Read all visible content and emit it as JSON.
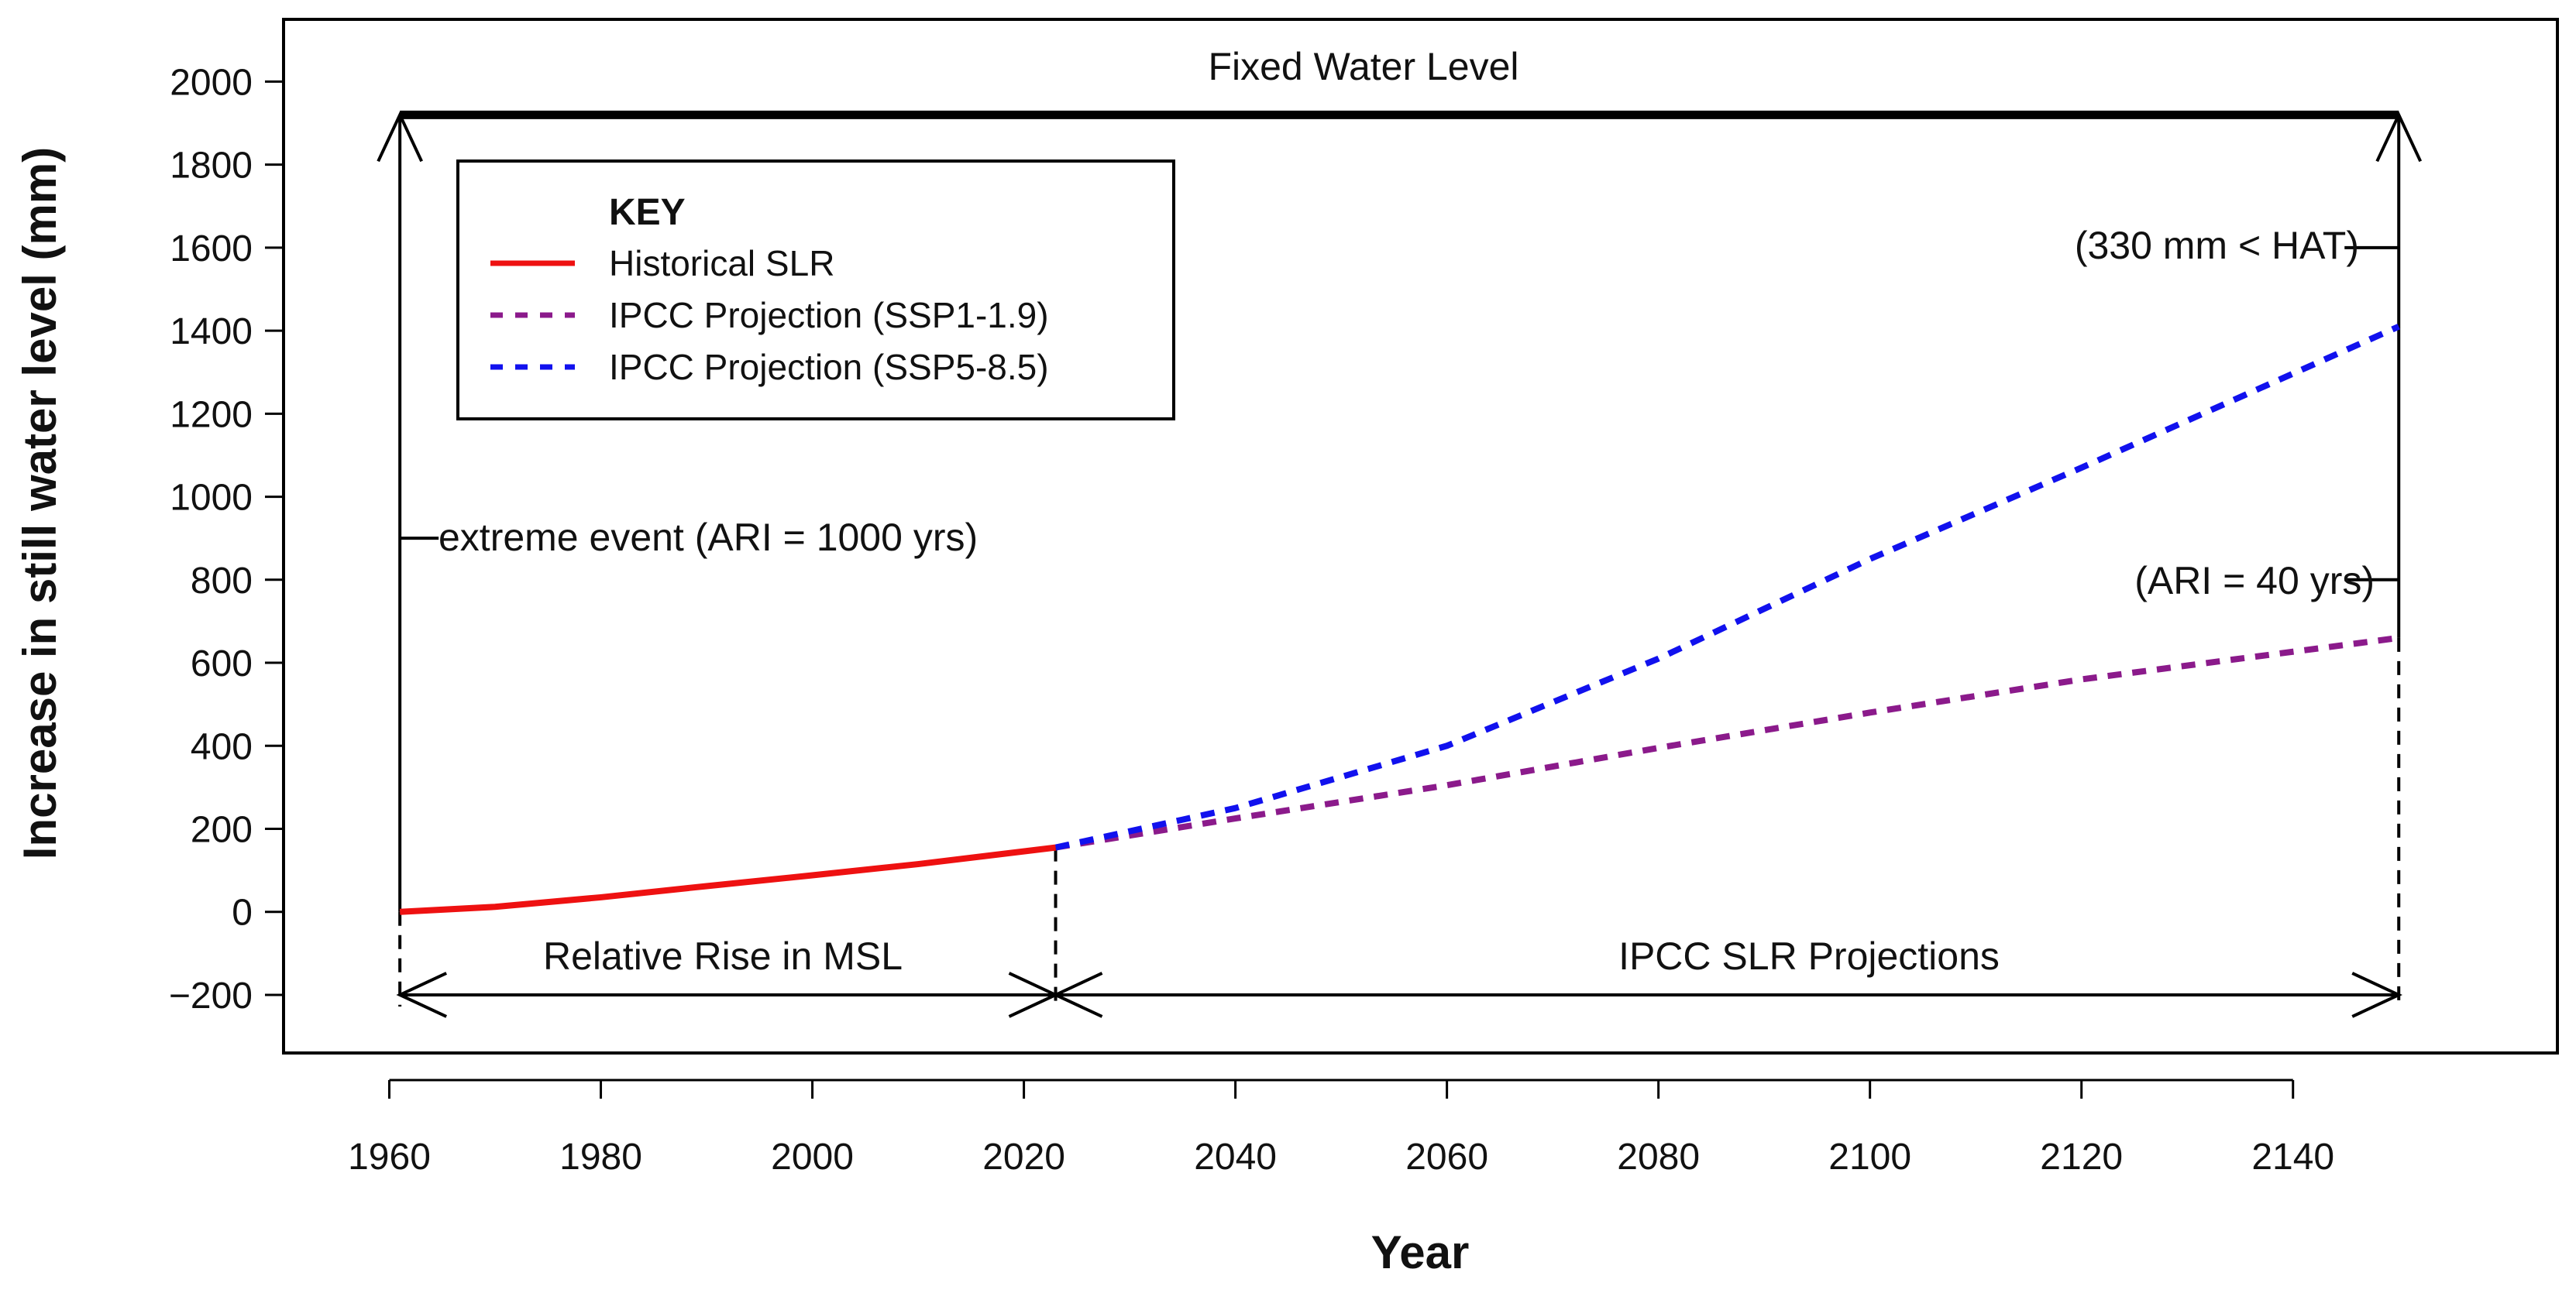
{
  "chart_data": {
    "type": "line",
    "xlabel": "Year",
    "ylabel": "Increase in still water level (mm)",
    "xlim": [
      1950,
      2165
    ],
    "ylim": [
      -340,
      2150
    ],
    "x_ticks": [
      1960,
      1980,
      2000,
      2020,
      2040,
      2060,
      2080,
      2100,
      2120,
      2140
    ],
    "y_ticks": [
      -200,
      0,
      200,
      400,
      600,
      800,
      1000,
      1200,
      1400,
      1600,
      1800,
      2000
    ],
    "y_tick_labels": [
      "−200",
      "0",
      "200",
      "400",
      "600",
      "800",
      "1000",
      "1200",
      "1400",
      "1600",
      "1800",
      "2000"
    ],
    "legend": {
      "title": "KEY",
      "position": "top-left",
      "entries": [
        {
          "label": "Historical SLR",
          "color": "#ee1111",
          "style": "solid"
        },
        {
          "label": "IPCC Projection (SSP1-1.9)",
          "color": "#8b1a8b",
          "style": "dashed"
        },
        {
          "label": "IPCC Projection (SSP5-8.5)",
          "color": "#1111ee",
          "style": "dashed"
        }
      ]
    },
    "series": [
      {
        "name": "Historical SLR",
        "color": "#ee1111",
        "style": "solid",
        "x": [
          1961,
          1970,
          1980,
          1990,
          2000,
          2010,
          2023
        ],
        "y": [
          0,
          12,
          35,
          62,
          88,
          115,
          155
        ]
      },
      {
        "name": "IPCC Projection (SSP1-1.9)",
        "color": "#8b1a8b",
        "style": "dashed",
        "x": [
          2023,
          2040,
          2060,
          2080,
          2100,
          2120,
          2150
        ],
        "y": [
          155,
          225,
          305,
          395,
          480,
          560,
          660
        ]
      },
      {
        "name": "IPCC Projection (SSP5-8.5)",
        "color": "#1111ee",
        "style": "dashed",
        "x": [
          2023,
          2040,
          2060,
          2080,
          2100,
          2120,
          2150
        ],
        "y": [
          155,
          250,
          400,
          610,
          850,
          1070,
          1410
        ]
      }
    ],
    "fixed_level": {
      "label": "Fixed Water Level",
      "value": 1920,
      "x_start": 1961,
      "x_end": 2150
    },
    "annotations": {
      "left_event": "extreme event (ARI = 1000 yrs)",
      "right_hat": "(330 mm < HAT)",
      "right_ari": "(ARI = 40 yrs)",
      "hist_span": "Relative Rise in MSL",
      "proj_span": "IPCC SLR Projections"
    },
    "annotation_values": {
      "left_event_y": 900,
      "right_hat_y": 1600,
      "right_ari_y": 800,
      "span_y": -200,
      "span_split_year": 2023
    }
  }
}
